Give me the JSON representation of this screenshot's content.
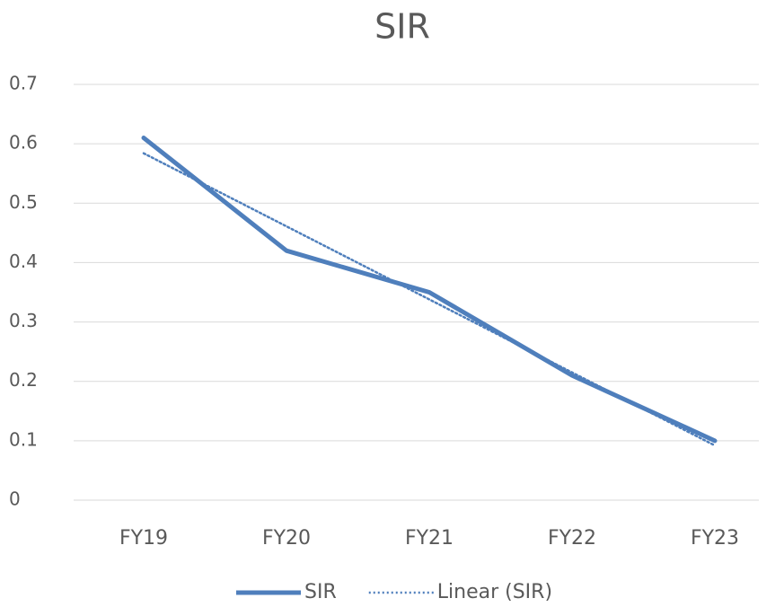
{
  "chart_data": {
    "type": "line",
    "title": "SIR",
    "categories": [
      "FY19",
      "FY20",
      "FY21",
      "FY22",
      "FY23"
    ],
    "series": [
      {
        "name": "SIR",
        "color": "#4f7fbc",
        "style": "solid",
        "values": [
          0.61,
          0.42,
          0.35,
          0.21,
          0.1
        ]
      },
      {
        "name": "Linear (SIR)",
        "color": "#4f7fbc",
        "style": "dotted",
        "values": [
          0.584,
          0.461,
          0.338,
          0.215,
          0.092
        ]
      }
    ],
    "ylim": [
      0,
      0.7
    ],
    "yticks": [
      0,
      0.1,
      0.2,
      0.3,
      0.4,
      0.5,
      0.6,
      0.7
    ],
    "grid": true,
    "legend": "bottom"
  }
}
